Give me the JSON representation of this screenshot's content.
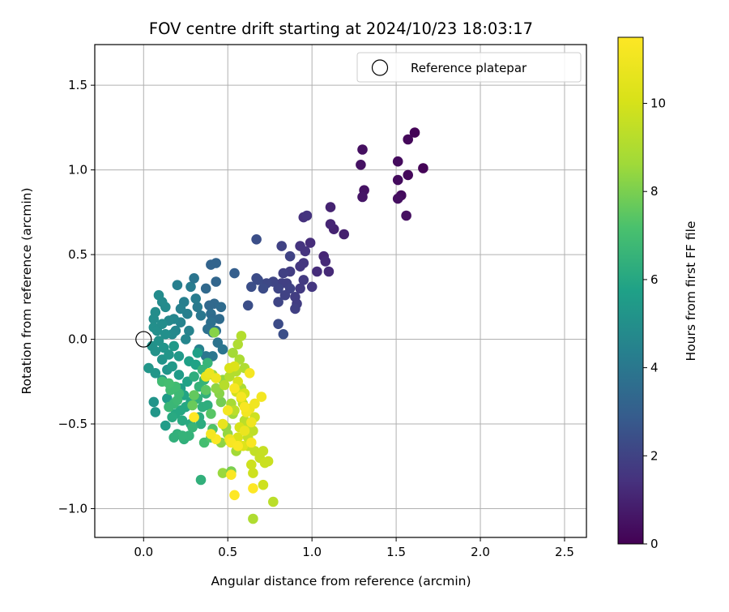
{
  "chart_data": {
    "type": "scatter",
    "title": "FOV centre drift starting at 2024/10/23 18:03:17",
    "xlabel": "Angular distance from reference (arcmin)",
    "ylabel": "Rotation from reference (arcmin)",
    "xlim": [
      -0.29,
      2.63
    ],
    "ylim": [
      -1.17,
      1.74
    ],
    "xticks": [
      0.0,
      0.5,
      1.0,
      1.5,
      2.0,
      2.5
    ],
    "yticks": [
      -1.0,
      -0.5,
      0.0,
      0.5,
      1.0,
      1.5
    ],
    "xtick_labels": [
      "0.0",
      "0.5",
      "1.0",
      "1.5",
      "2.0",
      "2.5"
    ],
    "ytick_labels": [
      "−1.0",
      "−0.5",
      "0.0",
      "0.5",
      "1.0",
      "1.5"
    ],
    "grid": true,
    "legend": {
      "position": "top-right",
      "label": "Reference platepar"
    },
    "reference_point": {
      "x": 0.0,
      "y": 0.0
    },
    "colorbar": {
      "label": "Hours from first FF file",
      "colormap": "viridis",
      "range": [
        0,
        11.5
      ],
      "ticks": [
        0,
        2,
        4,
        6,
        8,
        10
      ],
      "tick_labels": [
        "0",
        "2",
        "4",
        "6",
        "8",
        "10"
      ]
    },
    "points": [
      [
        1.61,
        1.22,
        0.1
      ],
      [
        1.57,
        1.18,
        0.2
      ],
      [
        1.66,
        1.01,
        0.1
      ],
      [
        1.57,
        0.97,
        0.2
      ],
      [
        1.51,
        1.05,
        0.3
      ],
      [
        1.51,
        0.94,
        0.3
      ],
      [
        1.53,
        0.85,
        0.3
      ],
      [
        1.51,
        0.83,
        0.4
      ],
      [
        1.56,
        0.73,
        0.4
      ],
      [
        1.3,
        1.12,
        0.4
      ],
      [
        1.29,
        1.03,
        0.5
      ],
      [
        1.31,
        0.88,
        0.5
      ],
      [
        1.3,
        0.84,
        0.6
      ],
      [
        1.19,
        0.62,
        0.9
      ],
      [
        1.13,
        0.65,
        1.0
      ],
      [
        1.11,
        0.68,
        1.1
      ],
      [
        1.11,
        0.78,
        1.0
      ],
      [
        1.07,
        0.49,
        1.1
      ],
      [
        1.08,
        0.46,
        1.2
      ],
      [
        1.1,
        0.4,
        1.2
      ],
      [
        1.03,
        0.4,
        1.3
      ],
      [
        0.99,
        0.57,
        1.3
      ],
      [
        0.95,
        0.72,
        1.4
      ],
      [
        0.97,
        0.73,
        1.5
      ],
      [
        0.93,
        0.55,
        1.5
      ],
      [
        0.96,
        0.52,
        1.5
      ],
      [
        0.95,
        0.45,
        1.6
      ],
      [
        0.93,
        0.43,
        1.6
      ],
      [
        0.95,
        0.35,
        1.7
      ],
      [
        0.93,
        0.3,
        1.7
      ],
      [
        1.0,
        0.31,
        1.6
      ],
      [
        0.9,
        0.25,
        1.8
      ],
      [
        0.91,
        0.21,
        1.8
      ],
      [
        0.9,
        0.18,
        1.9
      ],
      [
        0.87,
        0.4,
        1.8
      ],
      [
        0.83,
        0.39,
        1.9
      ],
      [
        0.82,
        0.33,
        1.9
      ],
      [
        0.85,
        0.33,
        1.9
      ],
      [
        0.87,
        0.3,
        2.0
      ],
      [
        0.84,
        0.26,
        2.0
      ],
      [
        0.8,
        0.22,
        2.1
      ],
      [
        0.8,
        0.3,
        2.1
      ],
      [
        0.82,
        0.55,
        2.0
      ],
      [
        0.87,
        0.49,
        2.0
      ],
      [
        0.77,
        0.34,
        2.1
      ],
      [
        0.73,
        0.33,
        2.2
      ],
      [
        0.71,
        0.3,
        2.3
      ],
      [
        0.67,
        0.36,
        2.3
      ],
      [
        0.68,
        0.35,
        2.3
      ],
      [
        0.64,
        0.31,
        2.4
      ],
      [
        0.62,
        0.2,
        2.4
      ],
      [
        0.67,
        0.59,
        2.4
      ],
      [
        0.8,
        0.09,
        2.3
      ],
      [
        0.83,
        0.03,
        2.4
      ],
      [
        0.54,
        0.39,
        3.0
      ],
      [
        0.43,
        0.45,
        3.2
      ],
      [
        0.4,
        0.44,
        3.2
      ],
      [
        0.43,
        0.34,
        3.3
      ],
      [
        0.37,
        0.3,
        3.4
      ],
      [
        0.42,
        0.21,
        3.4
      ],
      [
        0.39,
        0.2,
        3.4
      ],
      [
        0.46,
        0.19,
        3.5
      ],
      [
        0.45,
        0.12,
        3.5
      ],
      [
        0.4,
        0.15,
        3.6
      ],
      [
        0.41,
        0.12,
        3.5
      ],
      [
        0.4,
        0.1,
        3.7
      ],
      [
        0.38,
        0.06,
        3.7
      ],
      [
        0.43,
        0.05,
        3.7
      ],
      [
        0.41,
        0.04,
        3.8
      ],
      [
        0.44,
        -0.02,
        3.8
      ],
      [
        0.47,
        -0.06,
        3.9
      ],
      [
        0.41,
        -0.1,
        4.0
      ],
      [
        0.37,
        -0.1,
        4.0
      ],
      [
        0.34,
        0.14,
        4.0
      ],
      [
        0.32,
        0.19,
        4.1
      ],
      [
        0.31,
        0.24,
        4.2
      ],
      [
        0.28,
        0.31,
        4.2
      ],
      [
        0.2,
        0.32,
        4.3
      ],
      [
        0.26,
        0.15,
        4.3
      ],
      [
        0.24,
        0.22,
        4.3
      ],
      [
        0.22,
        0.18,
        4.4
      ],
      [
        0.22,
        0.1,
        4.5
      ],
      [
        0.27,
        0.05,
        4.5
      ],
      [
        0.19,
        0.05,
        4.6
      ],
      [
        0.18,
        0.12,
        4.6
      ],
      [
        0.17,
        0.03,
        4.7
      ],
      [
        0.15,
        0.11,
        4.7
      ],
      [
        0.13,
        0.19,
        4.8
      ],
      [
        0.09,
        0.26,
        4.8
      ],
      [
        0.11,
        0.22,
        4.8
      ],
      [
        0.07,
        0.16,
        4.9
      ],
      [
        0.06,
        0.12,
        4.9
      ],
      [
        0.06,
        0.07,
        5.0
      ],
      [
        0.08,
        0.05,
        5.0
      ],
      [
        0.11,
        0.09,
        4.9
      ],
      [
        0.13,
        0.03,
        5.0
      ],
      [
        0.09,
        -0.01,
        5.1
      ],
      [
        0.05,
        -0.04,
        5.1
      ],
      [
        0.07,
        -0.07,
        5.1
      ],
      [
        0.12,
        -0.05,
        5.2
      ],
      [
        0.11,
        -0.12,
        5.2
      ],
      [
        0.14,
        -0.18,
        5.2
      ],
      [
        0.03,
        -0.17,
        5.3
      ],
      [
        0.07,
        -0.2,
        5.3
      ],
      [
        0.11,
        -0.24,
        5.3
      ],
      [
        0.15,
        -0.09,
        5.3
      ],
      [
        0.18,
        -0.04,
        5.4
      ],
      [
        0.21,
        -0.1,
        5.4
      ],
      [
        0.17,
        -0.16,
        5.4
      ],
      [
        0.21,
        -0.21,
        5.5
      ],
      [
        0.22,
        -0.29,
        5.6
      ],
      [
        0.14,
        -0.35,
        5.5
      ],
      [
        0.06,
        -0.37,
        5.2
      ],
      [
        0.07,
        -0.43,
        5.3
      ],
      [
        0.13,
        -0.51,
        5.6
      ],
      [
        0.3,
        0.36,
        3.9
      ],
      [
        0.33,
        -0.06,
        4.4
      ],
      [
        0.25,
        0.0,
        4.6
      ],
      [
        0.32,
        -0.08,
        5.7
      ],
      [
        0.27,
        -0.13,
        5.7
      ],
      [
        0.31,
        -0.15,
        5.8
      ],
      [
        0.26,
        -0.25,
        5.8
      ],
      [
        0.24,
        -0.33,
        5.9
      ],
      [
        0.28,
        -0.37,
        5.9
      ],
      [
        0.25,
        -0.4,
        6.0
      ],
      [
        0.22,
        -0.42,
        6.0
      ],
      [
        0.19,
        -0.44,
        6.0
      ],
      [
        0.17,
        -0.46,
        6.1
      ],
      [
        0.23,
        -0.48,
        6.1
      ],
      [
        0.28,
        -0.5,
        6.1
      ],
      [
        0.34,
        -0.5,
        6.2
      ],
      [
        0.33,
        -0.46,
        6.2
      ],
      [
        0.35,
        -0.4,
        6.3
      ],
      [
        0.38,
        -0.39,
        6.3
      ],
      [
        0.32,
        -0.35,
        6.4
      ],
      [
        0.37,
        -0.32,
        6.4
      ],
      [
        0.33,
        -0.28,
        6.5
      ],
      [
        0.36,
        -0.24,
        6.5
      ],
      [
        0.35,
        -0.18,
        6.6
      ],
      [
        0.38,
        -0.14,
        6.6
      ],
      [
        0.3,
        -0.22,
        6.3
      ],
      [
        0.2,
        -0.56,
        6.4
      ],
      [
        0.24,
        -0.59,
        6.4
      ],
      [
        0.27,
        -0.57,
        6.5
      ],
      [
        0.23,
        -0.57,
        6.5
      ],
      [
        0.29,
        -0.52,
        6.6
      ],
      [
        0.18,
        -0.58,
        6.4
      ],
      [
        0.15,
        -0.4,
        6.7
      ],
      [
        0.18,
        -0.38,
        6.7
      ],
      [
        0.2,
        -0.36,
        6.8
      ],
      [
        0.21,
        -0.32,
        6.8
      ],
      [
        0.16,
        -0.3,
        6.9
      ],
      [
        0.19,
        -0.28,
        6.9
      ],
      [
        0.11,
        -0.25,
        6.9
      ],
      [
        0.15,
        -0.26,
        7.0
      ],
      [
        0.36,
        -0.61,
        7.0
      ],
      [
        0.34,
        -0.83,
        6.4
      ],
      [
        0.41,
        -0.53,
        7.3
      ],
      [
        0.4,
        -0.44,
        7.4
      ],
      [
        0.37,
        -0.3,
        7.5
      ],
      [
        0.3,
        -0.33,
        7.6
      ],
      [
        0.29,
        -0.39,
        7.7
      ],
      [
        0.4,
        -0.58,
        7.3
      ],
      [
        0.42,
        0.04,
        8.2
      ],
      [
        0.46,
        -0.37,
        7.9
      ],
      [
        0.45,
        -0.32,
        8.2
      ],
      [
        0.43,
        -0.29,
        8.3
      ],
      [
        0.47,
        -0.24,
        8.4
      ],
      [
        0.41,
        -0.21,
        8.5
      ],
      [
        0.49,
        -0.52,
        8.3
      ],
      [
        0.5,
        -0.56,
        8.4
      ],
      [
        0.46,
        -0.61,
        8.3
      ],
      [
        0.47,
        -0.79,
        8.5
      ],
      [
        0.51,
        -0.6,
        8.6
      ],
      [
        0.55,
        -0.66,
        8.7
      ],
      [
        0.53,
        -0.44,
        8.6
      ],
      [
        0.52,
        -0.38,
        8.8
      ],
      [
        0.58,
        -0.29,
        8.9
      ],
      [
        0.53,
        -0.08,
        8.7
      ],
      [
        0.57,
        -0.12,
        8.9
      ],
      [
        0.58,
        0.02,
        9.1
      ],
      [
        0.56,
        -0.03,
        9.0
      ],
      [
        0.6,
        -0.17,
        9.0
      ],
      [
        0.55,
        -0.19,
        9.1
      ],
      [
        0.51,
        -0.22,
        9.1
      ],
      [
        0.48,
        -0.27,
        9.2
      ],
      [
        0.59,
        -0.38,
        9.2
      ],
      [
        0.54,
        -0.42,
        9.3
      ],
      [
        0.6,
        -0.48,
        9.3
      ],
      [
        0.62,
        -0.51,
        9.4
      ],
      [
        0.65,
        -0.54,
        9.4
      ],
      [
        0.62,
        -0.58,
        9.5
      ],
      [
        0.62,
        -0.63,
        9.5
      ],
      [
        0.66,
        -0.66,
        9.5
      ],
      [
        0.69,
        -0.7,
        9.6
      ],
      [
        0.71,
        -0.66,
        9.6
      ],
      [
        0.72,
        -0.73,
        9.7
      ],
      [
        0.74,
        -0.72,
        9.7
      ],
      [
        0.64,
        -0.74,
        9.8
      ],
      [
        0.65,
        -0.79,
        9.8
      ],
      [
        0.71,
        -0.86,
        9.8
      ],
      [
        0.77,
        -0.96,
        9.3
      ],
      [
        0.65,
        -1.06,
        9.0
      ],
      [
        0.52,
        -0.78,
        8.0
      ],
      [
        0.66,
        -0.46,
        9.8
      ],
      [
        0.55,
        -0.31,
        9.9
      ],
      [
        0.58,
        -0.35,
        10.0
      ],
      [
        0.6,
        -0.32,
        10.0
      ],
      [
        0.56,
        -0.25,
        10.1
      ],
      [
        0.51,
        -0.17,
        10.1
      ],
      [
        0.54,
        -0.16,
        10.2
      ],
      [
        0.57,
        -0.52,
        10.0
      ],
      [
        0.56,
        -0.58,
        10.1
      ],
      [
        0.59,
        -0.63,
        10.3
      ],
      [
        0.37,
        -0.22,
        10.7
      ],
      [
        0.39,
        -0.2,
        10.8
      ],
      [
        0.43,
        -0.23,
        10.9
      ],
      [
        0.47,
        -0.5,
        10.7
      ],
      [
        0.51,
        -0.59,
        10.9
      ],
      [
        0.6,
        -0.54,
        10.8
      ],
      [
        0.63,
        -0.41,
        10.9
      ],
      [
        0.64,
        -0.49,
        11.0
      ],
      [
        0.61,
        -0.43,
        11.1
      ],
      [
        0.66,
        -0.38,
        11.0
      ],
      [
        0.7,
        -0.34,
        11.1
      ],
      [
        0.63,
        -0.2,
        11.2
      ],
      [
        0.58,
        -0.34,
        11.2
      ],
      [
        0.6,
        -0.4,
        11.3
      ],
      [
        0.54,
        -0.29,
        11.3
      ],
      [
        0.52,
        -0.61,
        11.3
      ],
      [
        0.56,
        -0.63,
        11.4
      ],
      [
        0.64,
        -0.61,
        11.3
      ],
      [
        0.52,
        -0.8,
        11.4
      ],
      [
        0.54,
        -0.92,
        11.5
      ],
      [
        0.65,
        -0.88,
        11.5
      ],
      [
        0.43,
        -0.59,
        11.4
      ],
      [
        0.3,
        -0.46,
        11.5
      ],
      [
        0.4,
        -0.56,
        11.2
      ],
      [
        0.5,
        -0.42,
        11.1
      ]
    ]
  }
}
